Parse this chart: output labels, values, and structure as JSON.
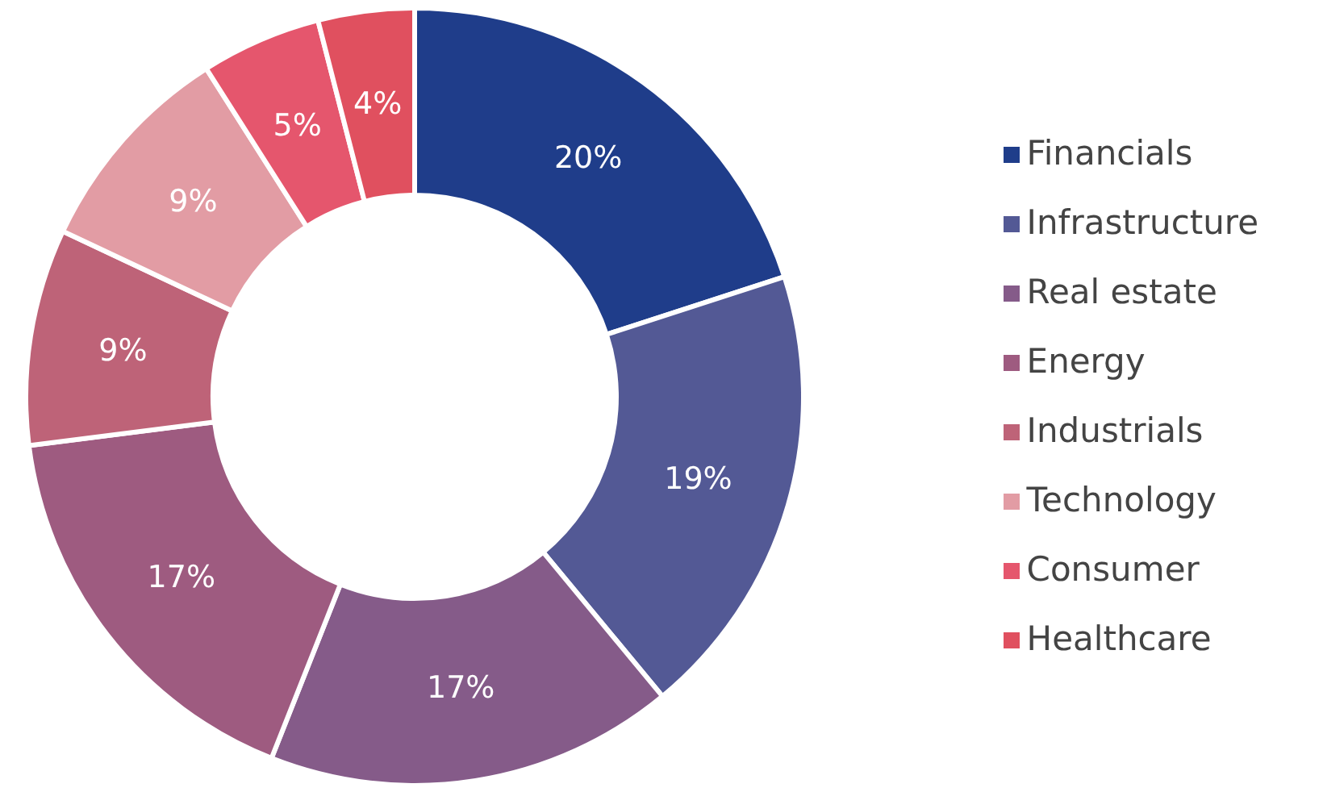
{
  "chart_data": {
    "type": "donut",
    "categories": [
      "Financials",
      "Infrastructure",
      "Real estate",
      "Energy",
      "Industrials",
      "Technology",
      "Consumer",
      "Healthcare"
    ],
    "values": [
      20,
      19,
      17,
      17,
      9,
      9,
      5,
      4
    ],
    "value_labels": [
      "20%",
      "19%",
      "17%",
      "17%",
      "9%",
      "9%",
      "5%",
      "4%"
    ],
    "colors": [
      "#1f3d8a",
      "#535995",
      "#855b89",
      "#9e5b80",
      "#be6378",
      "#e29ca4",
      "#e5566d",
      "#e0505f"
    ],
    "legend": "right"
  }
}
